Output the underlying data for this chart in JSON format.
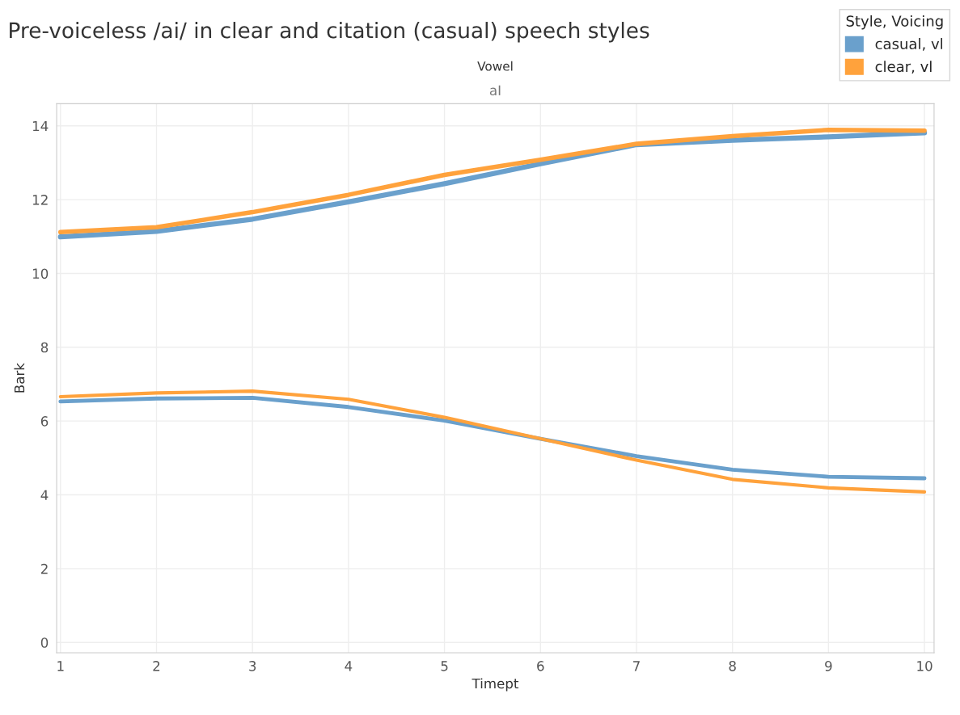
{
  "chart_data": {
    "type": "line",
    "title": "Pre-voiceless /ai/ in clear and citation (casual) speech styles",
    "xlabel": "Timept",
    "ylabel": "Bark",
    "legend_title": "Style, Voicing",
    "annotations": [
      "Vowel",
      "aI"
    ],
    "x": [
      1,
      2,
      3,
      4,
      5,
      6,
      7,
      8,
      9,
      10
    ],
    "series": [
      {
        "name": "casual, vl",
        "color": "#6aa0cc",
        "values": [
          10.99,
          11.14,
          11.47,
          11.94,
          12.43,
          12.97,
          13.49,
          13.61,
          13.7,
          13.81
        ]
      },
      {
        "name": "clear, vl",
        "color": "#ffa23c",
        "values": [
          11.12,
          11.25,
          11.66,
          12.13,
          12.67,
          13.08,
          13.51,
          13.72,
          13.89,
          13.87
        ]
      },
      {
        "color": "#6aa0cc",
        "values": [
          6.53,
          6.61,
          6.63,
          6.38,
          6.01,
          5.52,
          5.05,
          4.68,
          4.49,
          4.45
        ]
      },
      {
        "color": "#ffa23c",
        "values": [
          6.66,
          6.76,
          6.81,
          6.59,
          6.1,
          5.52,
          4.94,
          4.42,
          4.19,
          4.08
        ]
      }
    ],
    "xlim": [
      0.96,
      10.1
    ],
    "ylim": [
      -0.28,
      14.6
    ],
    "xticks": [
      1,
      2,
      3,
      4,
      5,
      6,
      7,
      8,
      9,
      10
    ],
    "yticks": [
      0,
      2,
      4,
      6,
      8,
      10,
      12,
      14
    ],
    "grid": true,
    "legend": "top right",
    "line_style": "solid",
    "marker": "none"
  }
}
